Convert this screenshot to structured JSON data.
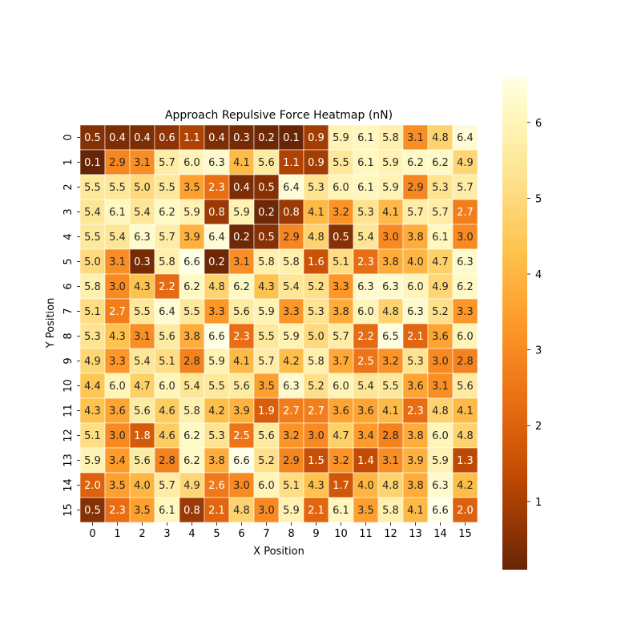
{
  "chart_data": {
    "type": "heatmap",
    "title": "Approach Repulsive Force Heatmap (nN)",
    "xlabel": "X Position",
    "ylabel": "Y Position",
    "x_categories": [
      "0",
      "1",
      "2",
      "3",
      "4",
      "5",
      "6",
      "7",
      "8",
      "9",
      "10",
      "11",
      "12",
      "13",
      "14",
      "15"
    ],
    "y_categories": [
      "0",
      "1",
      "2",
      "3",
      "4",
      "5",
      "6",
      "7",
      "8",
      "9",
      "10",
      "11",
      "12",
      "13",
      "14",
      "15"
    ],
    "values": [
      [
        0.5,
        0.4,
        0.4,
        0.6,
        1.1,
        0.4,
        0.3,
        0.2,
        0.1,
        0.9,
        5.9,
        6.1,
        5.8,
        3.1,
        4.8,
        6.4
      ],
      [
        0.1,
        2.9,
        3.1,
        5.7,
        6.0,
        6.3,
        4.1,
        5.6,
        1.1,
        0.9,
        5.5,
        6.1,
        5.9,
        6.2,
        6.2,
        4.9
      ],
      [
        5.5,
        5.5,
        5.0,
        5.5,
        3.5,
        2.3,
        0.4,
        0.5,
        6.4,
        5.3,
        6.0,
        6.1,
        5.9,
        2.9,
        5.3,
        5.7
      ],
      [
        5.4,
        6.1,
        5.4,
        6.2,
        5.9,
        0.8,
        5.9,
        0.2,
        0.8,
        4.1,
        3.2,
        5.3,
        4.1,
        5.7,
        5.7,
        2.7
      ],
      [
        5.5,
        5.4,
        6.3,
        5.7,
        3.9,
        6.4,
        0.2,
        0.5,
        2.9,
        4.8,
        0.5,
        5.4,
        3.0,
        3.8,
        6.1,
        3.0
      ],
      [
        5.0,
        3.1,
        0.3,
        5.8,
        6.6,
        0.2,
        3.1,
        5.8,
        5.8,
        1.6,
        5.1,
        2.3,
        3.8,
        4.0,
        4.7,
        6.3
      ],
      [
        5.8,
        3.0,
        4.3,
        2.2,
        6.2,
        4.8,
        6.2,
        4.3,
        5.4,
        5.2,
        3.3,
        6.3,
        6.3,
        6.0,
        4.9,
        6.2
      ],
      [
        5.1,
        2.7,
        5.5,
        6.4,
        5.5,
        3.3,
        5.6,
        5.9,
        3.3,
        5.3,
        3.8,
        6.0,
        4.8,
        6.3,
        5.2,
        3.3
      ],
      [
        5.3,
        4.3,
        3.1,
        5.6,
        3.8,
        6.6,
        2.3,
        5.5,
        5.9,
        5.0,
        5.7,
        2.2,
        6.5,
        2.1,
        3.6,
        6.0
      ],
      [
        4.9,
        3.3,
        5.4,
        5.1,
        2.8,
        5.9,
        4.1,
        5.7,
        4.2,
        5.8,
        3.7,
        2.5,
        3.2,
        5.3,
        3.0,
        2.8
      ],
      [
        4.4,
        6.0,
        4.7,
        6.0,
        5.4,
        5.5,
        5.6,
        3.5,
        6.3,
        5.2,
        6.0,
        5.4,
        5.5,
        3.6,
        3.1,
        5.6
      ],
      [
        4.3,
        3.6,
        5.6,
        4.6,
        5.8,
        4.2,
        3.9,
        1.9,
        2.7,
        2.7,
        3.6,
        3.6,
        4.1,
        2.3,
        4.8,
        4.1
      ],
      [
        5.1,
        3.0,
        1.8,
        4.6,
        6.2,
        5.3,
        2.5,
        5.6,
        3.2,
        3.0,
        4.7,
        3.4,
        2.8,
        3.8,
        6.0,
        4.8
      ],
      [
        5.9,
        3.4,
        5.6,
        2.8,
        6.2,
        3.8,
        6.6,
        5.2,
        2.9,
        1.5,
        3.2,
        1.4,
        3.1,
        3.9,
        5.9,
        1.3
      ],
      [
        2.0,
        3.5,
        4.0,
        5.7,
        4.9,
        2.6,
        3.0,
        6.0,
        5.1,
        4.3,
        1.7,
        4.0,
        4.8,
        3.8,
        6.3,
        4.2
      ],
      [
        0.5,
        2.3,
        3.5,
        6.1,
        0.8,
        2.1,
        4.8,
        3.0,
        5.9,
        2.1,
        6.1,
        3.5,
        5.8,
        4.1,
        6.6,
        2.0
      ]
    ],
    "colormap": "YlOrBr_r",
    "color_range": [
      0.1,
      6.6
    ],
    "colorbar_ticks": [
      "1",
      "2",
      "3",
      "4",
      "5",
      "6"
    ],
    "colorbar_tick_values": [
      1,
      2,
      3,
      4,
      5,
      6
    ],
    "cell_annotations": true,
    "cell_border_color": "#ffffff",
    "legend": "colorbar right"
  }
}
